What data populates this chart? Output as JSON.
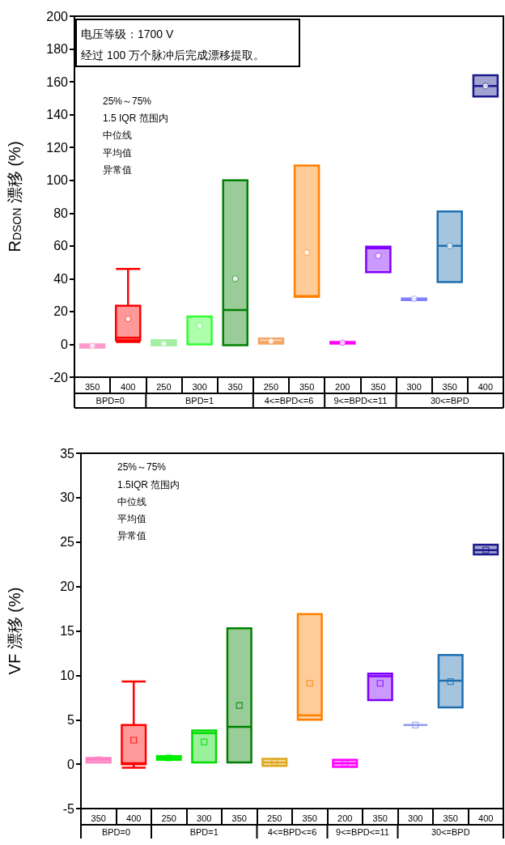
{
  "chart_data": [
    {
      "type": "box",
      "ylabel": "R$_{DSON}$ 漂移 (%)",
      "ylim": [
        -20,
        200
      ],
      "yticks": [
        -20,
        0,
        20,
        40,
        60,
        80,
        100,
        120,
        140,
        160,
        180,
        200
      ],
      "marker": "circle",
      "categories": [
        "350",
        "400",
        "250",
        "300",
        "350",
        "250",
        "350",
        "200",
        "350",
        "300",
        "350",
        "400"
      ],
      "colors": [
        "#ff99cc",
        "#ff0000",
        "#99ee99",
        "#33ff33",
        "#008000",
        "#f4a460",
        "#ff8000",
        "#ff00ff",
        "#8000ff",
        "#8080ff",
        "#1f6fb0",
        "#1a1a8c"
      ],
      "boxes": [
        {
          "low": -2,
          "q1": -2,
          "median": -1,
          "q3": 0,
          "high": 0,
          "mean": -1
        },
        {
          "low": 1.5,
          "q1": 2.5,
          "median": 4,
          "q3": 23.5,
          "high": 46,
          "mean": 15.5
        },
        {
          "low": -0.5,
          "q1": -0.5,
          "median": 1,
          "q3": 2.5,
          "high": 2.5,
          "mean": 0.5
        },
        {
          "low": 0,
          "q1": 0,
          "median": 17,
          "q3": 17,
          "high": 17,
          "mean": 11.5
        },
        {
          "low": -0.5,
          "q1": -0.5,
          "median": 21,
          "q3": 100,
          "high": 100,
          "mean": 40
        },
        {
          "low": 0.5,
          "q1": 0.5,
          "median": 1.5,
          "q3": 3.5,
          "high": 3.5,
          "mean": 2
        },
        {
          "low": 29,
          "q1": 29,
          "median": 29.5,
          "q3": 109,
          "high": 109,
          "mean": 56
        },
        {
          "low": 0.5,
          "q1": 0.5,
          "median": 1,
          "q3": 1.5,
          "high": 1.5,
          "mean": 1
        },
        {
          "low": 44,
          "q1": 44,
          "median": 58.5,
          "q3": 59.5,
          "high": 59.5,
          "mean": 54
        },
        {
          "low": 27,
          "q1": 27,
          "median": 27.5,
          "q3": 28,
          "high": 28,
          "mean": 27.8
        },
        {
          "low": 38,
          "q1": 38,
          "median": 60,
          "q3": 81,
          "high": 81,
          "mean": 60
        },
        {
          "low": 151,
          "q1": 151,
          "median": 157.5,
          "q3": 164,
          "high": 164,
          "mean": 157.5
        }
      ],
      "annotations": [
        "电压等级：1700 V",
        "经过 100 万个脉冲后完成漂移提取。",
        "25%～75%",
        "1.5 IQR 范围内",
        "中位线",
        "平均值",
        "异常值",
        "BPD=0",
        "BPD=1",
        "4<=BPD<=6",
        "9<=BPD<=11",
        "30<=BPD"
      ]
    },
    {
      "type": "box",
      "ylabel": "VF 漂移 (%)",
      "ylim": [
        -5,
        35
      ],
      "yticks": [
        -5,
        0,
        5,
        10,
        15,
        20,
        25,
        30,
        35
      ],
      "marker": "square",
      "categories": [
        "350",
        "400",
        "250",
        "300",
        "350",
        "250",
        "350",
        "200",
        "350",
        "300",
        "350",
        "400"
      ],
      "colors": [
        "#ff80c0",
        "#ff0000",
        "#00ee00",
        "#00dd00",
        "#008000",
        "#e0a820",
        "#ff8000",
        "#ff00ff",
        "#8000ff",
        "#8c9cf0",
        "#1f6fb0",
        "#1a1a8c"
      ],
      "boxes": [
        {
          "low": 0.2,
          "q1": 0.2,
          "median": 0.5,
          "q3": 0.7,
          "high": 0.7,
          "mean": 0.5
        },
        {
          "low": -0.4,
          "q1": 0,
          "median": 0.1,
          "q3": 4.4,
          "high": 9.3,
          "mean": 2.7
        },
        {
          "low": 0.5,
          "q1": 0.5,
          "median": 0.7,
          "q3": 0.9,
          "high": 0.9,
          "mean": 0.7
        },
        {
          "low": 0.2,
          "q1": 0.2,
          "median": 3.5,
          "q3": 3.8,
          "high": 3.8,
          "mean": 2.5
        },
        {
          "low": 0.2,
          "q1": 0.2,
          "median": 4.2,
          "q3": 15.3,
          "high": 15.3,
          "mean": 6.6
        },
        {
          "low": -0.2,
          "q1": -0.2,
          "median": 0.2,
          "q3": 0.6,
          "high": 0.6,
          "mean": 0.2
        },
        {
          "low": 5,
          "q1": 5,
          "median": 5.5,
          "q3": 16.9,
          "high": 16.9,
          "mean": 9.1
        },
        {
          "low": -0.3,
          "q1": -0.3,
          "median": 0.1,
          "q3": 0.5,
          "high": 0.5,
          "mean": 0.1
        },
        {
          "low": 7.2,
          "q1": 7.2,
          "median": 9.9,
          "q3": 10.2,
          "high": 10.2,
          "mean": 9.1
        },
        {
          "low": 4.4,
          "q1": 4.4,
          "median": 4.4,
          "q3": 4.4,
          "high": 4.4,
          "mean": 4.4
        },
        {
          "low": 6.4,
          "q1": 6.4,
          "median": 9.4,
          "q3": 12.3,
          "high": 12.3,
          "mean": 9.3
        },
        {
          "low": 23.6,
          "q1": 23.6,
          "median": 24.1,
          "q3": 24.7,
          "high": 24.7,
          "mean": 24.1
        }
      ],
      "annotations": [
        "25%～75%",
        "1.5IQR 范围内",
        "中位线",
        "平均值",
        "异常值",
        "BPD=0",
        "BPD=1",
        "4<=BPD<=6",
        "9<=BPD<=11",
        "30<=BPD"
      ]
    }
  ]
}
